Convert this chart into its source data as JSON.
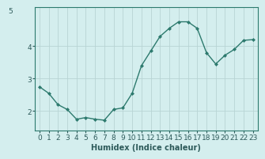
{
  "x": [
    0,
    1,
    2,
    3,
    4,
    5,
    6,
    7,
    8,
    9,
    10,
    11,
    12,
    13,
    14,
    15,
    16,
    17,
    18,
    19,
    20,
    21,
    22,
    23
  ],
  "y": [
    2.75,
    2.55,
    2.2,
    2.05,
    1.75,
    1.8,
    1.75,
    1.72,
    2.05,
    2.1,
    2.55,
    3.4,
    3.85,
    4.3,
    4.55,
    4.75,
    4.75,
    4.55,
    3.8,
    3.45,
    3.72,
    3.9,
    4.18,
    4.2
  ],
  "line_color": "#2d7a6e",
  "marker": "D",
  "marker_size": 2.0,
  "bg_color": "#d4eeee",
  "grid_color": "#b8d4d4",
  "axis_color": "#2d7a6e",
  "text_color": "#2d5a5a",
  "xlabel": "Humidex (Indice chaleur)",
  "xlabel_fontsize": 7,
  "tick_fontsize": 6.5,
  "ylim": [
    1.4,
    5.2
  ],
  "yticks": [
    2,
    3,
    4
  ],
  "ytop_label": "5",
  "xlim": [
    -0.5,
    23.5
  ],
  "linewidth": 1.0
}
